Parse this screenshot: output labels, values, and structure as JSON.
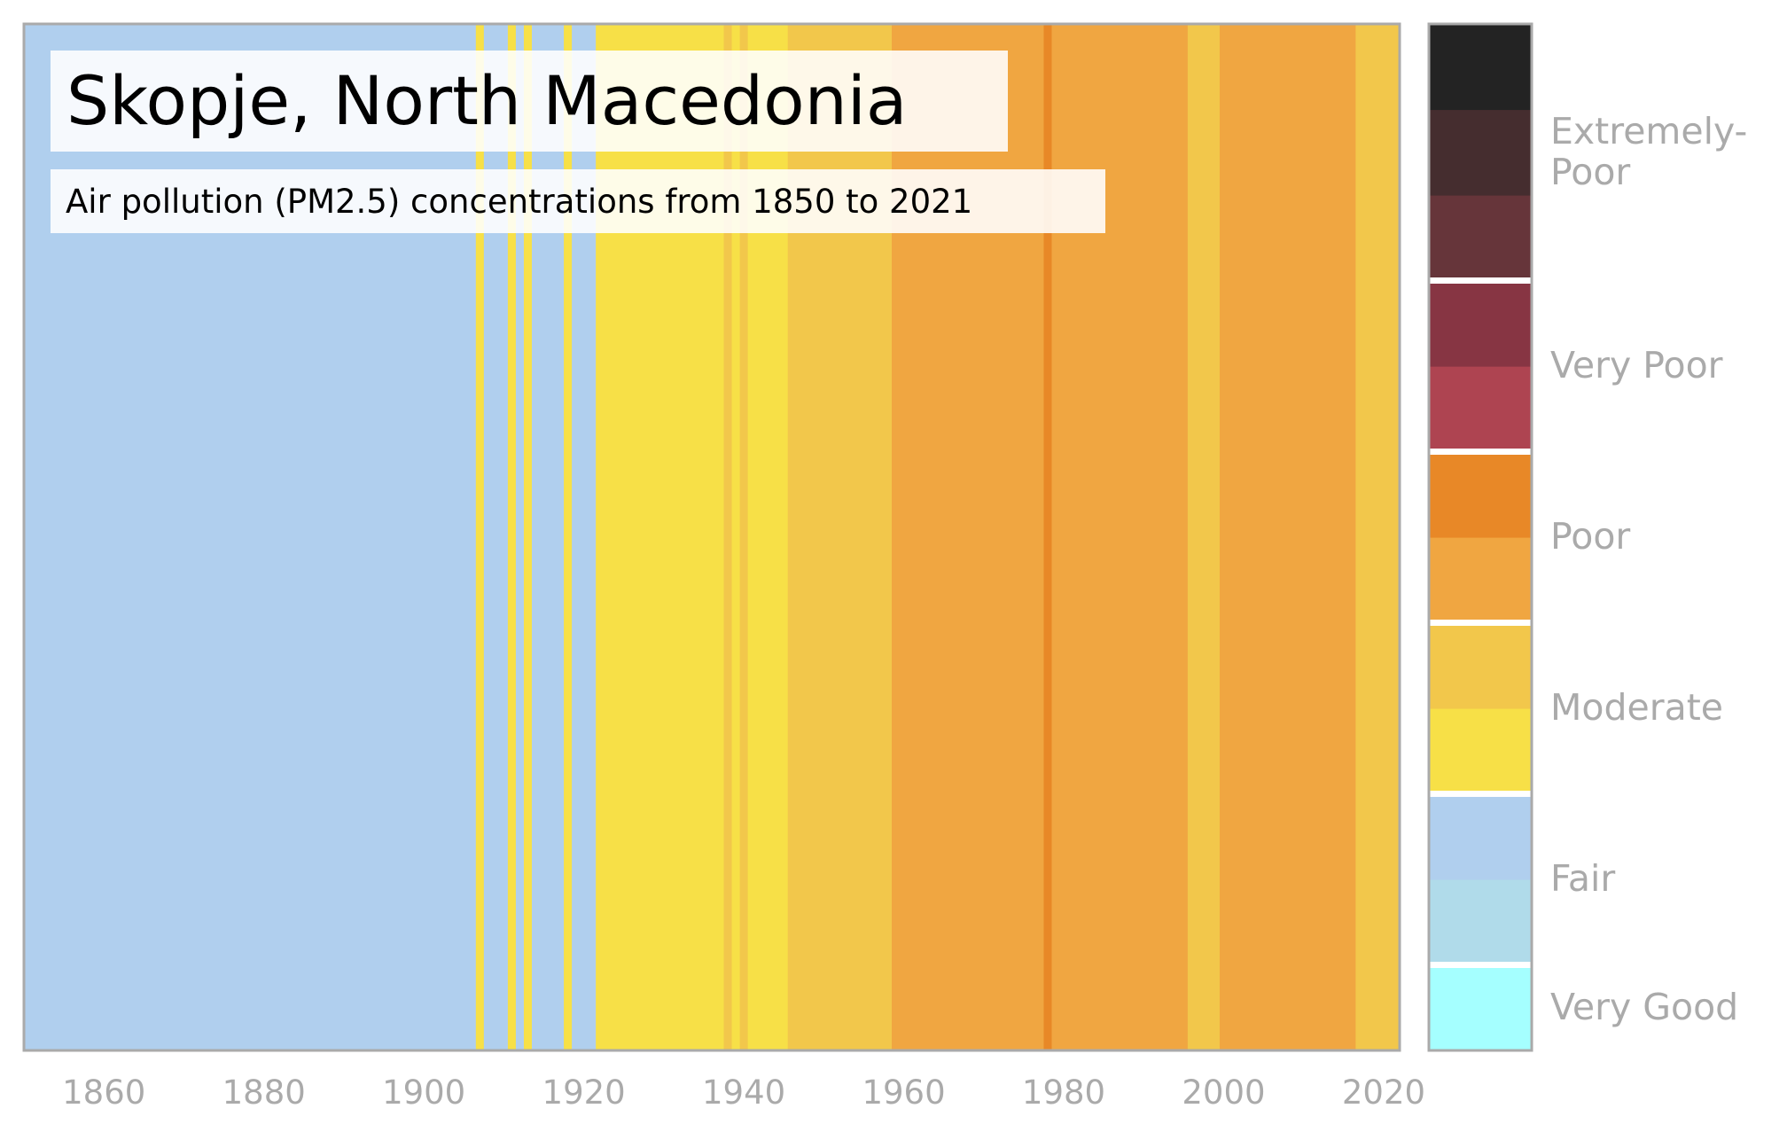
{
  "chart_data": {
    "type": "heatmap",
    "title": "Skopje, North Macedonia",
    "subtitle": "Air pollution (PM2.5) concentrations from 1850 to 2021",
    "xlabel": "",
    "ylabel": "",
    "xlim": [
      1850,
      2022
    ],
    "x_ticks": [
      1860,
      1880,
      1900,
      1920,
      1940,
      1960,
      1980,
      2000,
      2020
    ],
    "grid": false,
    "category_colors": {
      "very_good": "#a5ffff",
      "good": "#b0dbea",
      "fair": "#b0cfee",
      "moderate_low": "#f7e047",
      "moderate_high": "#f2c74b",
      "poor_low": "#f0a641",
      "poor_high": "#e88827",
      "very_poor_low": "#ae4451",
      "very_poor_high": "#873543",
      "extremely_poor_low": "#66353a",
      "extremely_poor_mid": "#452d2f",
      "extremely_poor_high": "#232323"
    },
    "segments": [
      {
        "start": 1850,
        "end": 1906.5,
        "level": "fair"
      },
      {
        "start": 1906.5,
        "end": 1907.5,
        "level": "moderate_low"
      },
      {
        "start": 1907.5,
        "end": 1910.5,
        "level": "fair"
      },
      {
        "start": 1910.5,
        "end": 1911.5,
        "level": "moderate_low"
      },
      {
        "start": 1911.5,
        "end": 1912.5,
        "level": "fair"
      },
      {
        "start": 1912.5,
        "end": 1913.5,
        "level": "moderate_low"
      },
      {
        "start": 1913.5,
        "end": 1917.5,
        "level": "fair"
      },
      {
        "start": 1917.5,
        "end": 1918.5,
        "level": "moderate_low"
      },
      {
        "start": 1918.5,
        "end": 1921.5,
        "level": "fair"
      },
      {
        "start": 1921.5,
        "end": 1937.5,
        "level": "moderate_low"
      },
      {
        "start": 1937.5,
        "end": 1938.5,
        "level": "moderate_high"
      },
      {
        "start": 1938.5,
        "end": 1939.5,
        "level": "moderate_low"
      },
      {
        "start": 1939.5,
        "end": 1940.5,
        "level": "moderate_high"
      },
      {
        "start": 1940.5,
        "end": 1945.5,
        "level": "moderate_low"
      },
      {
        "start": 1945.5,
        "end": 1958.5,
        "level": "moderate_high"
      },
      {
        "start": 1958.5,
        "end": 1977.5,
        "level": "poor_low"
      },
      {
        "start": 1977.5,
        "end": 1978.5,
        "level": "poor_high"
      },
      {
        "start": 1978.5,
        "end": 1995.5,
        "level": "poor_low"
      },
      {
        "start": 1995.5,
        "end": 1999.5,
        "level": "moderate_high"
      },
      {
        "start": 1999.5,
        "end": 2016.5,
        "level": "poor_low"
      },
      {
        "start": 2016.5,
        "end": 2022,
        "level": "moderate_high"
      }
    ],
    "legend": {
      "placement": "right",
      "blocks_bottom_to_top": [
        "very_good",
        "good",
        "fair",
        "moderate_low",
        "moderate_high",
        "poor_low",
        "poor_high",
        "very_poor_low",
        "very_poor_high",
        "extremely_poor_low",
        "extremely_poor_mid",
        "extremely_poor_high"
      ],
      "groups": [
        {
          "label": "Very Good",
          "blocks": 1
        },
        {
          "label": "Fair",
          "blocks": 2
        },
        {
          "label": "Moderate",
          "blocks": 2
        },
        {
          "label": "Poor",
          "blocks": 2
        },
        {
          "label": "Very Poor",
          "blocks": 2
        },
        {
          "label": "Extremely-\nPoor",
          "blocks": 3
        }
      ]
    }
  }
}
